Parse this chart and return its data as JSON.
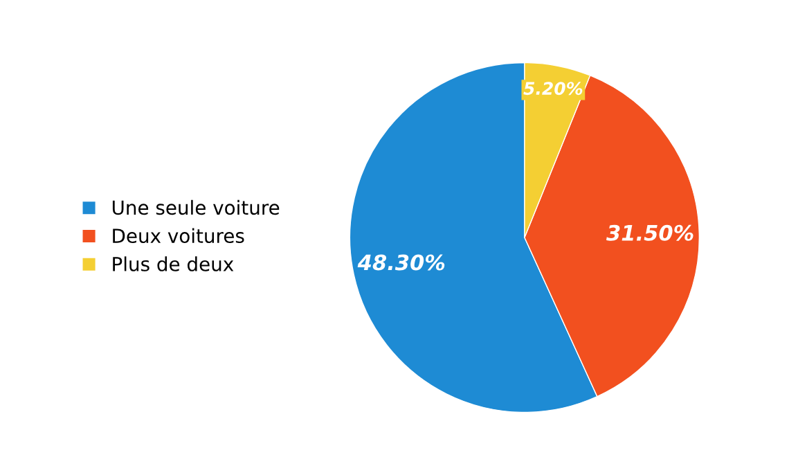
{
  "chart_data": {
    "type": "pie",
    "categories": [
      "Une seule voiture",
      "Deux voitures",
      "Plus de deux"
    ],
    "values": [
      48.3,
      31.5,
      5.2
    ],
    "colors": [
      "#1e8bd4",
      "#f2501f",
      "#f4cf33"
    ],
    "value_labels": [
      "48.30%",
      "31.50%",
      "5.20%"
    ],
    "legend": "left"
  }
}
